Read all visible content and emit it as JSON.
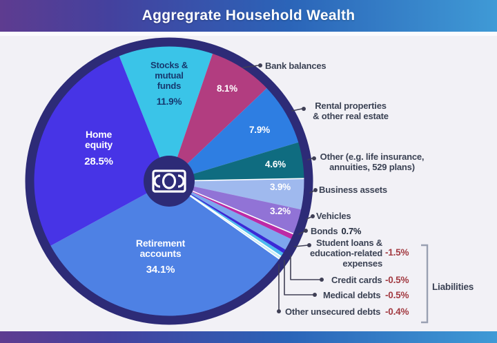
{
  "header": {
    "title": "Aggregrate Household Wealth"
  },
  "colors": {
    "background": "#f2f1f6",
    "header_gradient": [
      "#5e3c90",
      "#44419e",
      "#2b64b8",
      "#3f9ad6"
    ],
    "pie_ring": "#2d2b77",
    "center_circle": "#2d2b77",
    "callout_text": "#3b4254",
    "negative_value": "#a23a41",
    "slice_label_light": "#ffffff",
    "slice_label_dark": "#16386e",
    "leader_line": "#3f3f55"
  },
  "chart_data": {
    "type": "pie",
    "title": "Aggregrate Household Wealth",
    "start_angle_deg": -21.7,
    "legend_position": "right-callouts",
    "center_icon": "banknote-icon",
    "slices": [
      {
        "id": "stocks",
        "label": "Stocks &\nmutual\nfunds",
        "value": 11.9,
        "display": "11.9%",
        "color": "#3ac4e8"
      },
      {
        "id": "bank-balances",
        "label": "Bank balances",
        "value": 8.1,
        "display": "8.1%",
        "color": "#b23d80"
      },
      {
        "id": "rental",
        "label": "Rental properties\n& other real estate",
        "value": 7.9,
        "display": "7.9%",
        "color": "#2e7ee2"
      },
      {
        "id": "other-assets",
        "label": "Other (e.g. life insurance,\nannuities, 529 plans)",
        "value": 4.6,
        "display": "4.6%",
        "color": "#0f6c80"
      },
      {
        "id": "business",
        "label": "Business assets",
        "value": 3.9,
        "display": "3.9%",
        "color": "#9fb9ee",
        "sep": true
      },
      {
        "id": "vehicles",
        "label": "Vehicles",
        "value": 3.2,
        "display": "3.2%",
        "color": "#9173d6"
      },
      {
        "id": "bonds",
        "label": "Bonds",
        "value": 0.7,
        "display": "0.7%",
        "color": "#bd2aa6",
        "sep": true
      },
      {
        "id": "student-loans",
        "label": "Student loans &\neducation-related\nexpenses",
        "value": -1.5,
        "display": "-1.5%",
        "color": "#7da6ee"
      },
      {
        "id": "credit-cards",
        "label": "Credit cards",
        "value": -0.5,
        "display": "-0.5%",
        "color": "#3a2ad6"
      },
      {
        "id": "medical-debts",
        "label": "Medical debts",
        "value": -0.5,
        "display": "-0.5%",
        "color": "#4cbaee"
      },
      {
        "id": "other-unsecured",
        "label": "Other unsecured debts",
        "value": -0.4,
        "display": "-0.4%",
        "color": "#c9ecf5",
        "sep": true
      },
      {
        "id": "retirement",
        "label": "Retirement\naccounts",
        "value": 34.1,
        "display": "34.1%",
        "color": "#4e81e4",
        "sep": true
      },
      {
        "id": "home-equity",
        "label": "Home\nequity",
        "value": 28.5,
        "display": "28.5%",
        "color": "#4734e6"
      }
    ],
    "groups": {
      "liabilities_label": "Liabilities",
      "liabilities_members": [
        "student-loans",
        "credit-cards",
        "medical-debts",
        "other-unsecured"
      ]
    }
  }
}
